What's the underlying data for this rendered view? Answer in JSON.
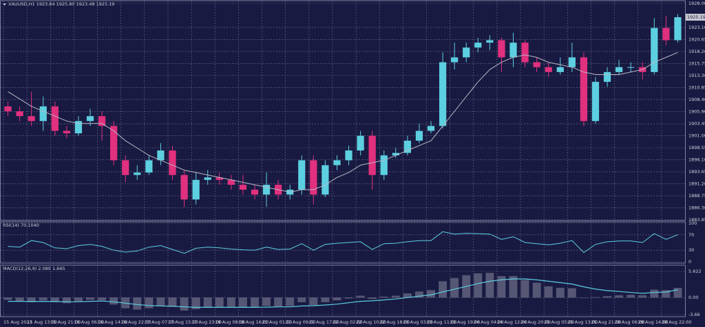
{
  "chart_data": [
    {
      "type": "candlestick",
      "title": "XAUUSD,H1  1923.84 1925.80 1923.48 1925.19",
      "categories": [
        "15 Aug 2023",
        null,
        "15 Aug 13:00",
        null,
        "15 Aug 21:00",
        null,
        "16 Aug 06:00",
        null,
        "16 Aug 14:00",
        null,
        "16 Aug 22:00",
        null,
        "17 Aug 07:00",
        null,
        "17 Aug 15:00",
        null,
        "17 Aug 23:00",
        null,
        "18 Aug 08:00",
        null,
        "18 Aug 16:00",
        null,
        "21 Aug 01:00",
        null,
        "21 Aug 09:00",
        null,
        "21 Aug 17:00",
        null,
        "22 Aug 02:00",
        null,
        "22 Aug 10:00",
        null,
        "22 Aug 18:00",
        null,
        "23 Aug 03:00",
        null,
        "23 Aug 11:00",
        null,
        "23 Aug 19:00",
        null,
        "24 Aug 04:00",
        null,
        "24 Aug 12:00",
        null,
        "24 Aug 20:00",
        null,
        "25 Aug 05:00",
        null,
        "25 Aug 13:00",
        null,
        "25 Aug 21:00",
        null,
        "28 Aug 06:00",
        null,
        "28 Aug 14:00",
        null,
        "28 Aug 22:00",
        null
      ],
      "open": [
        1907,
        1906,
        1905,
        1904,
        1907,
        1902,
        1901.5,
        1904,
        1905,
        1903,
        1896,
        1893,
        1893.5,
        1896,
        1898,
        1893,
        1888,
        1892,
        1892.5,
        1892,
        1891,
        1890,
        1889,
        1891,
        1889,
        1890,
        1896,
        1889,
        1895,
        1896,
        1898,
        1901,
        1893,
        1897,
        1897.5,
        1900,
        1902,
        1903,
        1916,
        1917,
        1919,
        1920,
        1920.5,
        1917,
        1920,
        1916,
        1915,
        1914,
        1915,
        1917,
        1904,
        1912,
        1914,
        1915,
        1915,
        1914,
        1923,
        1920.5
      ],
      "high": [
        1908,
        1907,
        1910,
        1909,
        1908,
        1903,
        1905,
        1906.5,
        1906,
        1904,
        1897,
        1895,
        1897,
        1899.5,
        1899,
        1894,
        1893.5,
        1894,
        1893.5,
        1893,
        1893,
        1891,
        1893.5,
        1892,
        1891,
        1897,
        1897,
        1896,
        1897,
        1899,
        1902,
        1902,
        1898,
        1898.5,
        1901,
        1903.5,
        1904,
        1918,
        1920,
        1920,
        1921,
        1921.5,
        1921,
        1922,
        1920.5,
        1917,
        1916,
        1917,
        1920,
        1918,
        1913,
        1915,
        1916.5,
        1916,
        1916,
        1925,
        1925.5,
        1925.8
      ],
      "low": [
        1905,
        1904,
        1903,
        1902,
        1901,
        1900.5,
        1901,
        1903,
        1900,
        1895,
        1891.5,
        1892,
        1893,
        1895,
        1892,
        1886.5,
        1887,
        1891,
        1891,
        1890,
        1889,
        1888,
        1886.5,
        1888,
        1888,
        1889,
        1887,
        1888.5,
        1894,
        1895,
        1897,
        1890,
        1892,
        1896.5,
        1897,
        1899.5,
        1901.5,
        1902.5,
        1914.5,
        1916,
        1918,
        1918.5,
        1914,
        1915,
        1915,
        1914,
        1913,
        1913.5,
        1914,
        1903,
        1903.5,
        1911,
        1913.5,
        1914,
        1912.5,
        1913.5,
        1919.5,
        1920
      ],
      "close": [
        1906,
        1905,
        1904,
        1907,
        1902,
        1901.5,
        1904,
        1905,
        1903,
        1896,
        1893,
        1893.5,
        1896,
        1898,
        1893,
        1888,
        1892,
        1892.5,
        1892,
        1891,
        1890,
        1889,
        1891,
        1889,
        1890,
        1896,
        1889,
        1895,
        1896,
        1898,
        1901,
        1893,
        1897,
        1897.5,
        1900,
        1902,
        1903,
        1916,
        1917,
        1919,
        1920,
        1920.5,
        1917,
        1920,
        1916,
        1915,
        1914,
        1915,
        1917,
        1904,
        1912,
        1914,
        1915,
        1915,
        1914,
        1923,
        1920.5,
        1925.19
      ],
      "line_values": [
        1910,
        1908.5,
        1907,
        1906,
        1905,
        1904,
        1903.5,
        1903.5,
        1903.5,
        1902,
        1900,
        1898.5,
        1897,
        1896,
        1895,
        1894,
        1893.5,
        1893,
        1892.5,
        1892,
        1891.5,
        1891,
        1890.5,
        1890,
        1889.5,
        1890,
        1890,
        1891,
        1892.5,
        1893.5,
        1895,
        1895.5,
        1896,
        1897,
        1898,
        1899,
        1900,
        1903,
        1906,
        1909,
        1912,
        1914.5,
        1916,
        1917,
        1917.5,
        1917,
        1916,
        1915.5,
        1915,
        1914,
        1913.5,
        1913.5,
        1913.5,
        1914,
        1914.5,
        1916,
        1917,
        1918
      ],
      "up_color": "#5ccfe0",
      "down_color": "#e0307e",
      "line_color": "#b8b8c4",
      "ylim": [
        1883.85,
        1928
      ],
      "yticks": [
        {
          "value": 1928,
          "label": "1928.00"
        },
        {
          "value": 1923.1,
          "label": "1923.10"
        },
        1920.65,
        {
          "value": 1918.2,
          "label": "1918.20"
        },
        1915.75,
        {
          "value": 1913.3,
          "label": "1913.30"
        },
        1910.85,
        {
          "value": 1908.4,
          "label": "1908.40"
        },
        {
          "value": 1905.9,
          "label": "1905.90"
        },
        1903.45,
        {
          "value": 1901,
          "label": "1901.00"
        },
        1898.55,
        {
          "value": 1896.1,
          "label": "1896.10"
        },
        1893.65,
        {
          "value": 1891.2,
          "label": "1891.20"
        },
        1888.75,
        {
          "value": 1886.3,
          "label": "1886.30"
        },
        1883.85
      ],
      "grid": true
    },
    {
      "type": "line",
      "title": "RSI(14) 70.1040",
      "values": [
        40,
        38,
        55,
        50,
        36,
        34,
        42,
        45,
        40,
        30,
        25,
        28,
        38,
        42,
        32,
        22,
        35,
        38,
        36,
        33,
        31,
        30,
        38,
        32,
        33,
        47,
        30,
        45,
        48,
        50,
        52,
        32,
        47,
        48,
        52,
        55,
        55,
        78,
        72,
        74,
        73,
        72,
        58,
        65,
        50,
        47,
        44,
        48,
        55,
        24,
        45,
        52,
        54,
        54,
        50,
        73,
        58,
        70.104
      ],
      "color": "#5ccfe0",
      "ylim": [
        0,
        100
      ],
      "yticks": [
        100,
        70,
        30,
        0
      ],
      "grid": true
    },
    {
      "type": "macd",
      "title": "MACD(12,26,9) 2.089 1.665",
      "values": [
        -0.5,
        -0.8,
        -1,
        -0.6,
        -1,
        -1.2,
        -0.8,
        -0.5,
        -0.6,
        -1.5,
        -2.3,
        -2.6,
        -2.3,
        -1.8,
        -2,
        -2.8,
        -2.5,
        -2.2,
        -2,
        -2,
        -2.1,
        -2.1,
        -1.8,
        -1.9,
        -1.8,
        -1,
        -1.6,
        -1,
        -0.6,
        -0.2,
        0.4,
        -0.3,
        0.2,
        0.4,
        0.9,
        1.3,
        1.6,
        3.5,
        4.2,
        4.8,
        5.2,
        5.3,
        4.6,
        4.6,
        3.8,
        3.2,
        2.4,
        2.1,
        2,
        0,
        0.1,
        0.3,
        0.5,
        0.6,
        0.5,
        1.7,
        1.6,
        2.089
      ],
      "signal": [
        -0.8,
        -0.8,
        -0.85,
        -0.8,
        -0.85,
        -0.9,
        -0.9,
        -0.8,
        -0.75,
        -0.9,
        -1.2,
        -1.5,
        -1.7,
        -1.8,
        -1.85,
        -2,
        -2.1,
        -2.1,
        -2.1,
        -2.1,
        -2.1,
        -2.1,
        -2.05,
        -2,
        -2,
        -1.8,
        -1.75,
        -1.6,
        -1.4,
        -1.1,
        -0.8,
        -0.7,
        -0.5,
        -0.3,
        0,
        0.3,
        0.6,
        1.2,
        1.8,
        2.4,
        3,
        3.5,
        3.8,
        4,
        4,
        3.8,
        3.5,
        3.2,
        2.9,
        2.3,
        1.8,
        1.5,
        1.3,
        1.1,
        0.9,
        1.1,
        1.2,
        1.665
      ],
      "color": "#c8c8d4",
      "line_color": "#5ccfe0",
      "ylim": [
        -3.66,
        5.622
      ],
      "yticks": [
        5.622,
        {
          "value": 0,
          "label": "0.00"
        },
        -3.66
      ],
      "grid": true
    }
  ]
}
